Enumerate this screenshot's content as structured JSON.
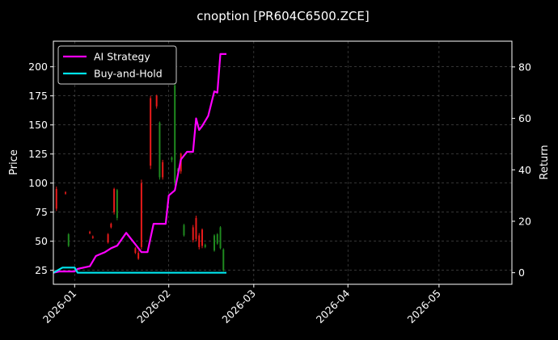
{
  "chart_data": {
    "type": "candlestick+line",
    "title": "cnoption [PR604C6500.ZCE]",
    "ylabel_left": "Price",
    "ylabel_right": "Return",
    "xlim": [
      "2025-12-25",
      "2026-05-25"
    ],
    "ylim_left": [
      13,
      222
    ],
    "ylim_right": [
      -4.5,
      90
    ],
    "x_ticks": [
      "2026-01",
      "2026-02",
      "2026-03",
      "2026-04",
      "2026-05"
    ],
    "y_ticks_left": [
      25,
      50,
      75,
      100,
      125,
      150,
      175,
      200
    ],
    "y_ticks_right": [
      0,
      20,
      40,
      60,
      80
    ],
    "grid": true,
    "legend_position": "top-left",
    "colors": {
      "background": "#000000",
      "up": "#1f8a1f",
      "down": "#e81a1a",
      "ai": "#ff00ff",
      "bh": "#00e5ee",
      "grid": "#555555",
      "axis": "#ffffff"
    },
    "candles": [
      {
        "date": "2025-12-26",
        "open": 95,
        "close": 78,
        "high": 97,
        "low": 76
      },
      {
        "date": "2025-12-29",
        "open": 92,
        "close": 91,
        "high": 93,
        "low": 90
      },
      {
        "date": "2025-12-30",
        "open": 46,
        "close": 56,
        "high": 57,
        "low": 45
      },
      {
        "date": "2026-01-06",
        "open": 58,
        "close": 57,
        "high": 59,
        "low": 56
      },
      {
        "date": "2026-01-07",
        "open": 54,
        "close": 53,
        "high": 55,
        "low": 52
      },
      {
        "date": "2026-01-12",
        "open": 56,
        "close": 49,
        "high": 57,
        "low": 48
      },
      {
        "date": "2026-01-13",
        "open": 65,
        "close": 62,
        "high": 66,
        "low": 61
      },
      {
        "date": "2026-01-14",
        "open": 95,
        "close": 75,
        "high": 96,
        "low": 73
      },
      {
        "date": "2026-01-15",
        "open": 70,
        "close": 94,
        "high": 95,
        "low": 68
      },
      {
        "date": "2026-01-21",
        "open": 44,
        "close": 40,
        "high": 45,
        "low": 39
      },
      {
        "date": "2026-01-22",
        "open": 40,
        "close": 35,
        "high": 42,
        "low": 34
      },
      {
        "date": "2026-01-23",
        "open": 100,
        "close": 45,
        "high": 103,
        "low": 43
      },
      {
        "date": "2026-01-26",
        "open": 173,
        "close": 115,
        "high": 175,
        "low": 112
      },
      {
        "date": "2026-01-28",
        "open": 175,
        "close": 166,
        "high": 176,
        "low": 164
      },
      {
        "date": "2026-01-29",
        "open": 105,
        "close": 152,
        "high": 153,
        "low": 103
      },
      {
        "date": "2026-01-30",
        "open": 118,
        "close": 105,
        "high": 120,
        "low": 103
      },
      {
        "date": "2026-02-02",
        "open": 120,
        "close": 122,
        "high": 123,
        "low": 118
      },
      {
        "date": "2026-02-03",
        "open": 100,
        "close": 184,
        "high": 186,
        "low": 98
      },
      {
        "date": "2026-02-04",
        "open": 110,
        "close": 112,
        "high": 113,
        "low": 108
      },
      {
        "date": "2026-02-05",
        "open": 125,
        "close": 110,
        "high": 126,
        "low": 108
      },
      {
        "date": "2026-02-06",
        "open": 55,
        "close": 64,
        "high": 65,
        "low": 54
      },
      {
        "date": "2026-02-09",
        "open": 62,
        "close": 51,
        "high": 64,
        "low": 49
      },
      {
        "date": "2026-02-10",
        "open": 70,
        "close": 52,
        "high": 72,
        "low": 50
      },
      {
        "date": "2026-02-11",
        "open": 55,
        "close": 45,
        "high": 57,
        "low": 43
      },
      {
        "date": "2026-02-12",
        "open": 60,
        "close": 46,
        "high": 61,
        "low": 44
      },
      {
        "date": "2026-02-13",
        "open": 45,
        "close": 47,
        "high": 48,
        "low": 44
      },
      {
        "date": "2026-02-16",
        "open": 42,
        "close": 55,
        "high": 56,
        "low": 41
      },
      {
        "date": "2026-02-17",
        "open": 48,
        "close": 56,
        "high": 57,
        "low": 47
      },
      {
        "date": "2026-02-18",
        "open": 44,
        "close": 62,
        "high": 63,
        "low": 43
      },
      {
        "date": "2026-02-19",
        "open": 25,
        "close": 43,
        "high": 44,
        "low": 24
      }
    ],
    "series": [
      {
        "name": "AI Strategy",
        "points": [
          [
            "2025-12-25",
            0
          ],
          [
            "2025-12-27",
            0.5
          ],
          [
            "2026-01-01",
            0.5
          ],
          [
            "2026-01-02",
            1.5
          ],
          [
            "2026-01-06",
            2.5
          ],
          [
            "2026-01-08",
            6.5
          ],
          [
            "2026-01-11",
            8
          ],
          [
            "2026-01-13",
            9.5
          ],
          [
            "2026-01-15",
            10.5
          ],
          [
            "2026-01-18",
            15.5
          ],
          [
            "2026-01-21",
            11
          ],
          [
            "2026-01-23",
            8
          ],
          [
            "2026-01-25",
            8
          ],
          [
            "2026-01-27",
            19
          ],
          [
            "2026-01-31",
            19
          ],
          [
            "2026-02-01",
            30
          ],
          [
            "2026-02-03",
            32
          ],
          [
            "2026-02-05",
            44
          ],
          [
            "2026-02-07",
            47
          ],
          [
            "2026-02-09",
            47
          ],
          [
            "2026-02-10",
            60
          ],
          [
            "2026-02-11",
            55.5
          ],
          [
            "2026-02-12",
            57
          ],
          [
            "2026-02-14",
            61
          ],
          [
            "2026-02-16",
            70.5
          ],
          [
            "2026-02-17",
            70
          ],
          [
            "2026-02-18",
            85
          ],
          [
            "2026-02-20",
            85
          ]
        ]
      },
      {
        "name": "Buy-and-Hold",
        "points": [
          [
            "2025-12-25",
            0
          ],
          [
            "2025-12-28",
            2
          ],
          [
            "2026-01-01",
            2
          ],
          [
            "2026-01-02",
            0
          ],
          [
            "2026-02-20",
            0
          ]
        ]
      }
    ]
  }
}
